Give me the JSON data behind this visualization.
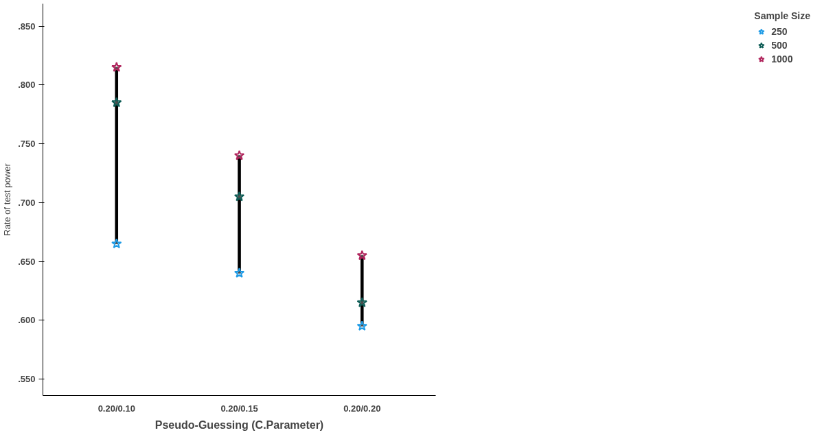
{
  "chart_data": {
    "type": "scatter",
    "xlabel": "Pseudo-Guessing (C.Parameter)",
    "ylabel": "Rate of test power",
    "legend_title": "Sample Size",
    "legend": "top right",
    "marker": "star",
    "grid": false,
    "categories": [
      "0.20/0.10",
      "0.20/0.15",
      "0.20/0.20"
    ],
    "ylim": [
      0.536,
      0.869
    ],
    "yticks": [
      {
        "value": 0.55,
        "label": ".550"
      },
      {
        "value": 0.6,
        "label": ".600"
      },
      {
        "value": 0.65,
        "label": ".650"
      },
      {
        "value": 0.7,
        "label": ".700"
      },
      {
        "value": 0.75,
        "label": ".750"
      },
      {
        "value": 0.8,
        "label": ".800"
      },
      {
        "value": 0.85,
        "label": ".850"
      }
    ],
    "series": [
      {
        "type": "bar",
        "color": "#000000",
        "values": [
          0.15,
          0.1,
          0.06
        ],
        "base": [
          0.665,
          0.64,
          0.595
        ]
      },
      {
        "name": "250",
        "color": "#1e9be6",
        "values": [
          0.665,
          0.64,
          0.595
        ]
      },
      {
        "name": "500",
        "color": "#0d5c55",
        "values": [
          0.785,
          0.705,
          0.615
        ]
      },
      {
        "name": "1000",
        "color": "#b0245c",
        "values": [
          0.815,
          0.74,
          0.655
        ]
      }
    ]
  }
}
